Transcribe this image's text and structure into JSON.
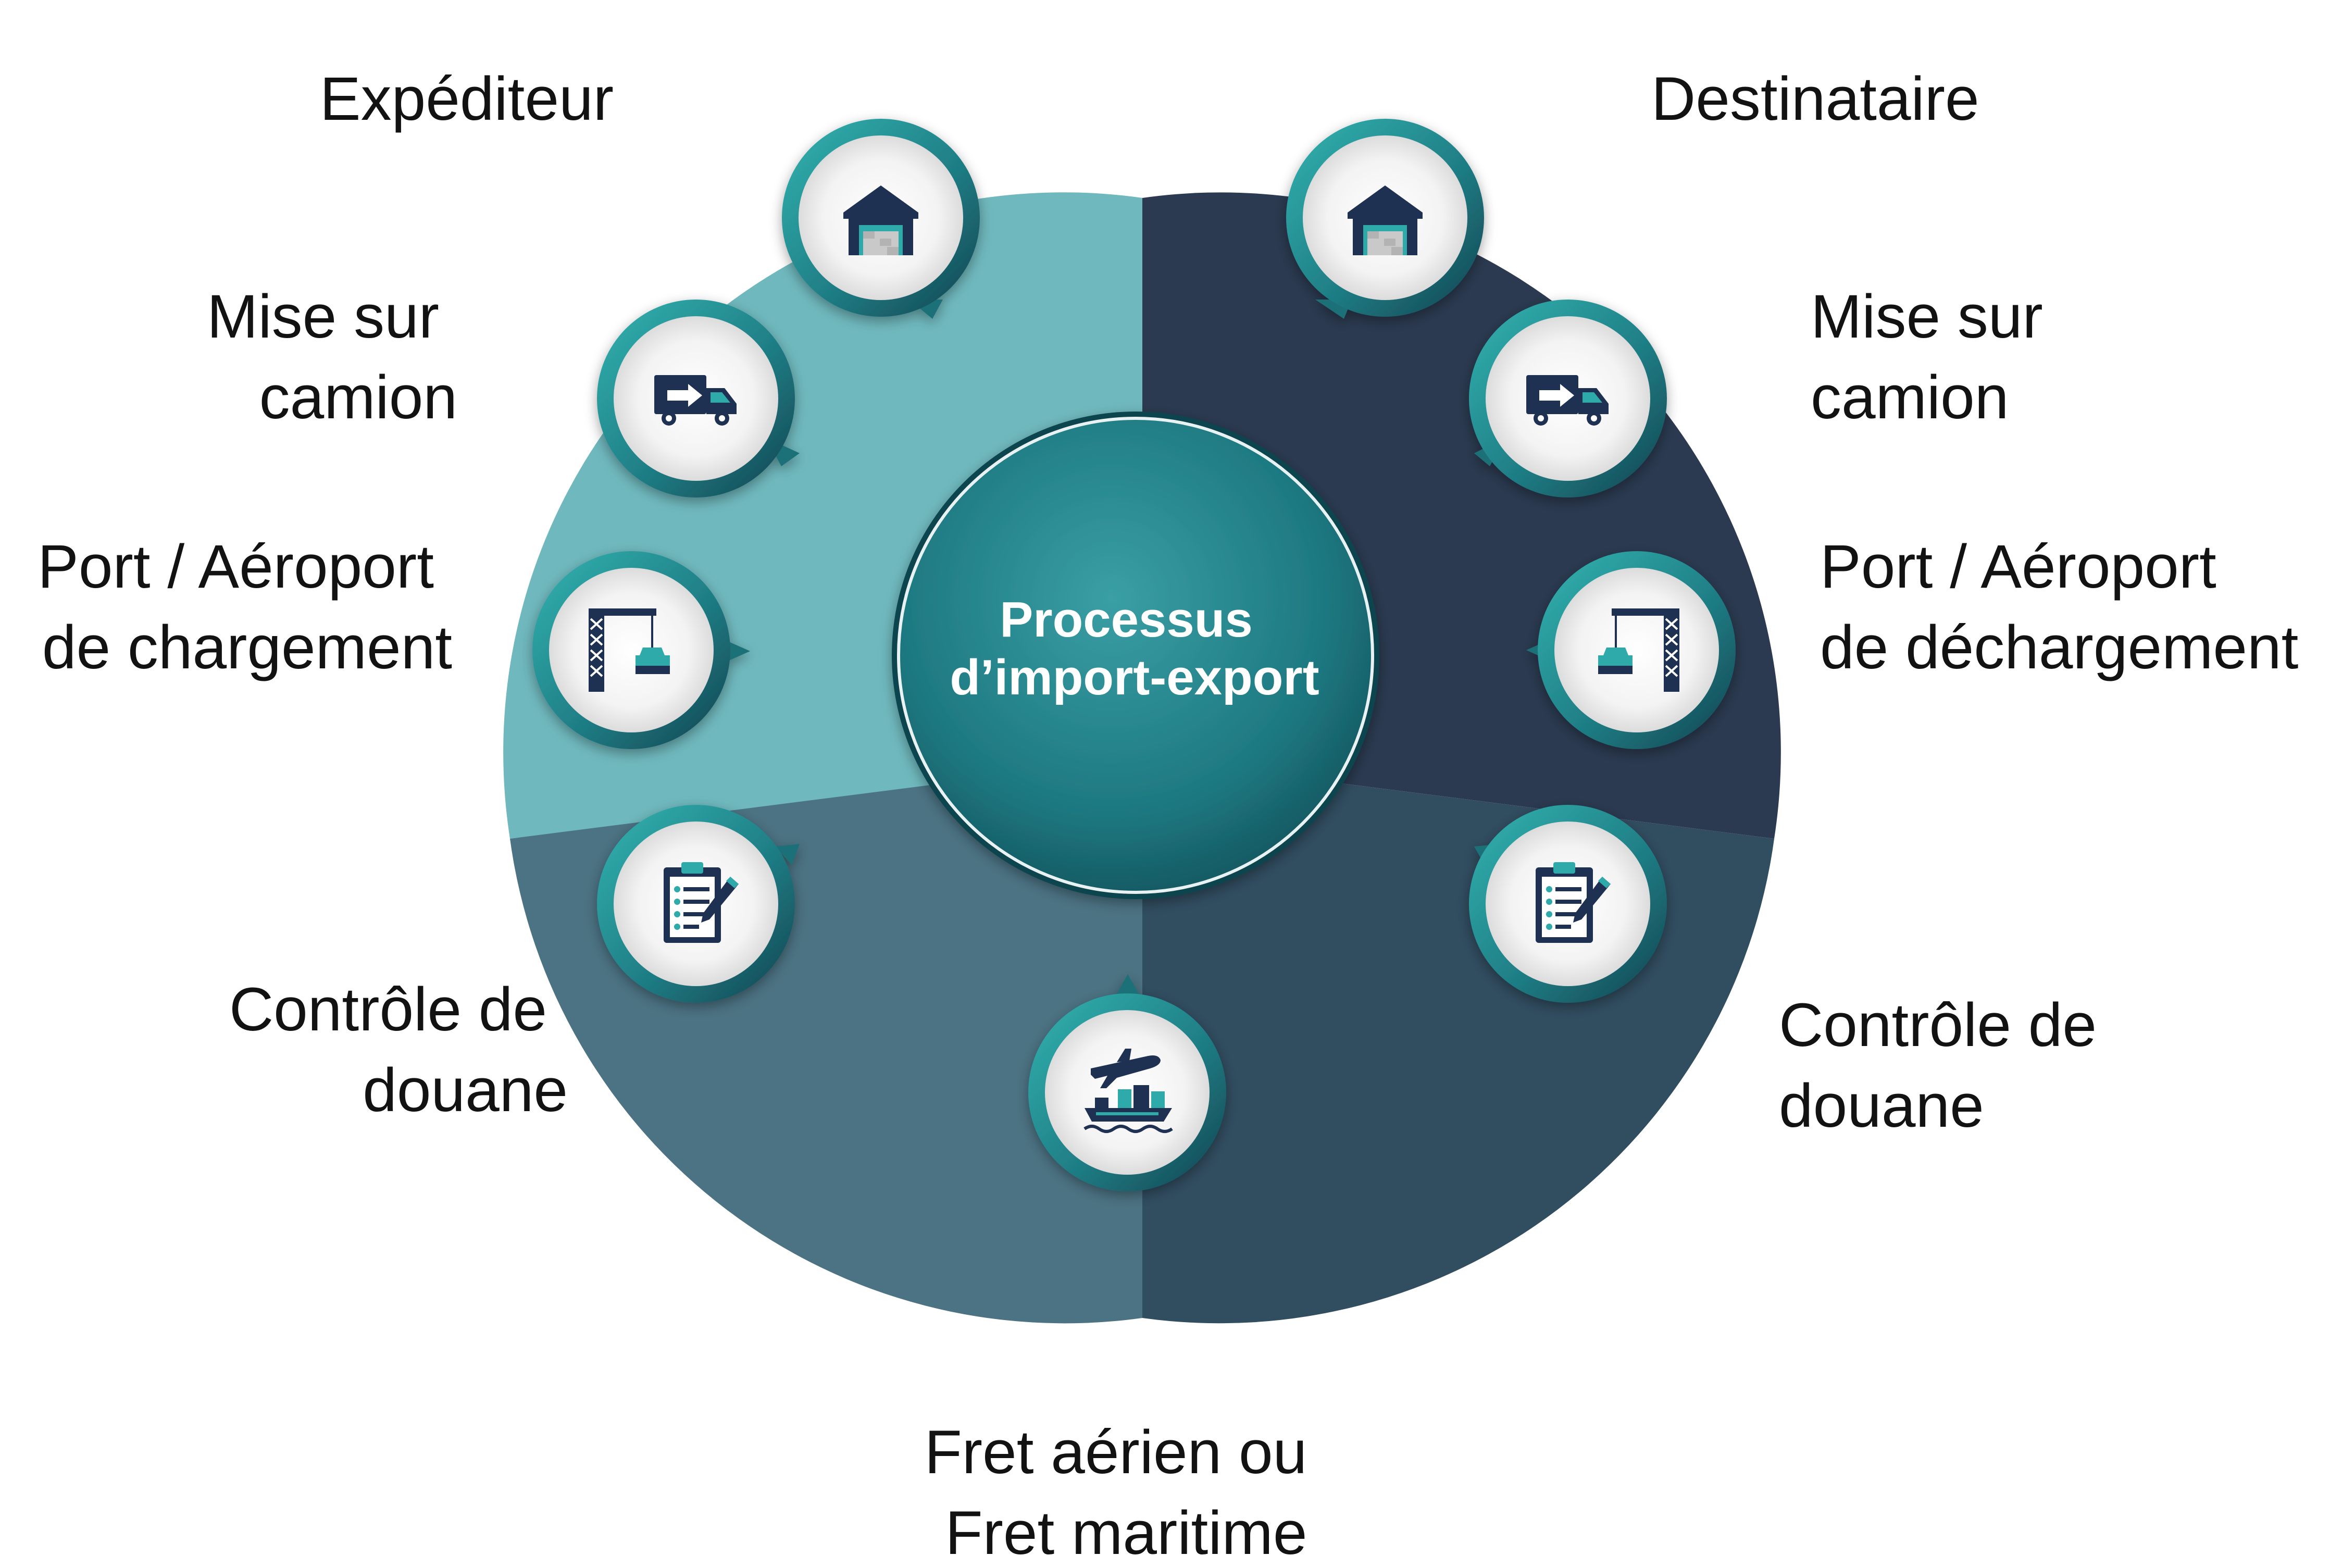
{
  "diagram": {
    "center": {
      "line1": "Processus",
      "line2": "d’import-export"
    },
    "left": {
      "shipper": "Expéditeur",
      "truck_line1": "Mise sur",
      "truck_line2": "camion",
      "port_line1": "Port / Aéroport",
      "port_line2": "de chargement",
      "customs_line1": "Contrôle de",
      "customs_line2": "douane"
    },
    "right": {
      "consignee": "Destinataire",
      "truck_line1": "Mise sur",
      "truck_line2": "camion",
      "port_line1": "Port / Aéroport",
      "port_line2": "de déchargement",
      "customs_line1": "Contrôle de",
      "customs_line2": "douane"
    },
    "bottom": {
      "freight_line1": "Fret aérien ou",
      "freight_line2": "Fret maritime"
    },
    "colors": {
      "sector_top_left": "#6fb8bd",
      "sector_right": "#2b3a50",
      "sector_bottom_left": "#4c7383",
      "sector_bottom_right": "#314d60",
      "accent_teal": "#2eaaaa",
      "icon_navy": "#1f3152",
      "icon_bg": "#f1f1f1"
    },
    "icons": [
      "warehouse-icon",
      "truck-icon",
      "crane-icon",
      "clipboard-icon",
      "plane-ship-icon"
    ]
  }
}
